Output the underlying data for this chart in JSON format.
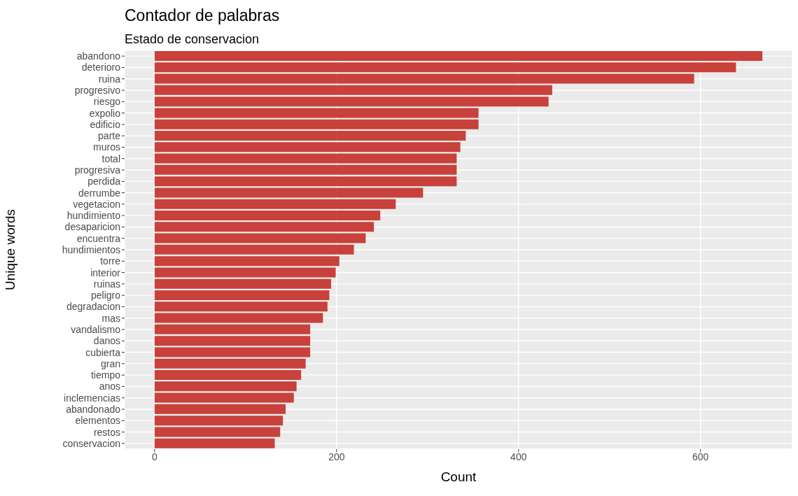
{
  "chart_data": {
    "type": "bar",
    "title": "Contador de palabras",
    "subtitle": "Estado de conservacion",
    "xlabel": "Count",
    "ylabel": "Unique words",
    "orientation": "horizontal",
    "categories": [
      "abandono",
      "deterioro",
      "ruina",
      "progresivo",
      "riesgo",
      "expolio",
      "edificio",
      "parte",
      "muros",
      "total",
      "progresiva",
      "perdida",
      "derrumbe",
      "vegetacion",
      "hundimiento",
      "desaparicion",
      "encuentra",
      "hundimientos",
      "torre",
      "interior",
      "ruinas",
      "peligro",
      "degradacion",
      "mas",
      "vandalismo",
      "danos",
      "cubierta",
      "gran",
      "tiempo",
      "anos",
      "inclemencias",
      "abandonado",
      "elementos",
      "restos",
      "conservacion"
    ],
    "values": [
      668,
      639,
      593,
      437,
      433,
      356,
      356,
      342,
      336,
      332,
      332,
      332,
      295,
      265,
      248,
      241,
      232,
      219,
      203,
      199,
      194,
      192,
      190,
      185,
      171,
      171,
      171,
      166,
      161,
      156,
      153,
      144,
      141,
      138,
      132
    ],
    "color": "#c8413a",
    "xlim": [
      -33,
      701
    ],
    "xticks": [
      0,
      200,
      400,
      600
    ],
    "grid": true
  }
}
